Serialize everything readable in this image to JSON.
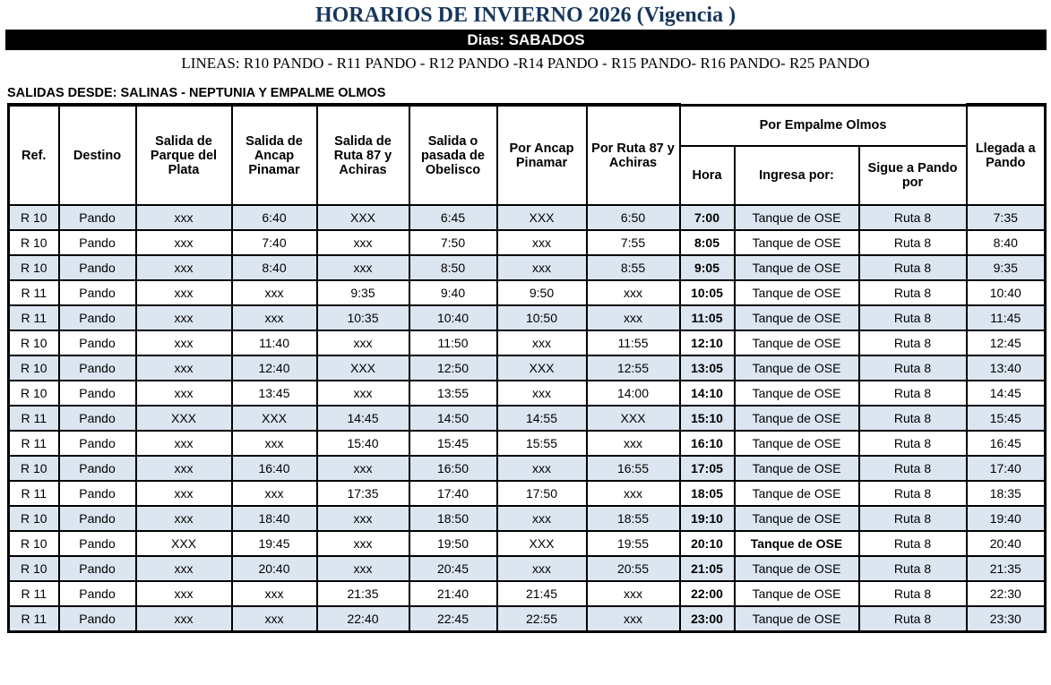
{
  "page": {
    "title": "HORARIOS DE INVIERNO 2026 (Vigencia )",
    "day_banner": "Dias: SABADOS",
    "lines": "LINEAS: R10 PANDO - R11 PANDO - R12 PANDO -R14 PANDO - R15 PANDO- R16 PANDO- R25 PANDO",
    "departures_from": "SALIDAS DESDE: SALINAS - NEPTUNIA Y EMPALME OLMOS"
  },
  "colors": {
    "title_navy": "#17365d",
    "banner_bg": "#000000",
    "banner_text": "#ffffff",
    "row_stripe": "#dce6f1",
    "grid_border": "#000000"
  },
  "table": {
    "headers": {
      "ref": "Ref.",
      "destino": "Destino",
      "parque": "Salida de Parque del Plata",
      "ancap": "Salida de Ancap Pinamar",
      "ruta87": "Salida de Ruta 87 y Achiras",
      "obelisco": "Salida o pasada de Obelisco",
      "por_ancap": "Por Ancap Pinamar",
      "por_ruta87": "Por Ruta 87 y Achiras",
      "por_empalme_group": "Por Empalme Olmos",
      "hora": "Hora",
      "ingresa": "Ingresa por:",
      "sigue": "Sigue a Pando por",
      "llegada": "Llegada a Pando"
    },
    "rows": [
      {
        "ref": "R 10",
        "destino": "Pando",
        "parque": "xxx",
        "ancap": "6:40",
        "ruta87": "XXX",
        "obelisco": "6:45",
        "por_ancap": "XXX",
        "por_ruta87": "6:50",
        "hora": "7:00",
        "ingresa": "Tanque de OSE",
        "sigue": "Ruta 8",
        "llegada": "7:35"
      },
      {
        "ref": "R 10",
        "destino": "Pando",
        "parque": "xxx",
        "ancap": "7:40",
        "ruta87": "xxx",
        "obelisco": "7:50",
        "por_ancap": "xxx",
        "por_ruta87": "7:55",
        "hora": "8:05",
        "ingresa": "Tanque de OSE",
        "sigue": "Ruta 8",
        "llegada": "8:40"
      },
      {
        "ref": "R 10",
        "destino": "Pando",
        "parque": "xxx",
        "ancap": "8:40",
        "ruta87": "xxx",
        "obelisco": "8:50",
        "por_ancap": "xxx",
        "por_ruta87": "8:55",
        "hora": "9:05",
        "ingresa": "Tanque de OSE",
        "sigue": "Ruta 8",
        "llegada": "9:35"
      },
      {
        "ref": "R 11",
        "destino": "Pando",
        "parque": "xxx",
        "ancap": "xxx",
        "ruta87": "9:35",
        "obelisco": "9:40",
        "por_ancap": "9:50",
        "por_ruta87": "xxx",
        "hora": "10:05",
        "ingresa": "Tanque de OSE",
        "sigue": "Ruta 8",
        "llegada": "10:40"
      },
      {
        "ref": "R 11",
        "destino": "Pando",
        "parque": "xxx",
        "ancap": "xxx",
        "ruta87": "10:35",
        "obelisco": "10:40",
        "por_ancap": "10:50",
        "por_ruta87": "xxx",
        "hora": "11:05",
        "ingresa": "Tanque de OSE",
        "sigue": "Ruta 8",
        "llegada": "11:45"
      },
      {
        "ref": "R 10",
        "destino": "Pando",
        "parque": "xxx",
        "ancap": "11:40",
        "ruta87": "xxx",
        "obelisco": "11:50",
        "por_ancap": "xxx",
        "por_ruta87": "11:55",
        "hora": "12:10",
        "ingresa": "Tanque de OSE",
        "sigue": "Ruta 8",
        "llegada": "12:45"
      },
      {
        "ref": "R 10",
        "destino": "Pando",
        "parque": "xxx",
        "ancap": "12:40",
        "ruta87": "XXX",
        "obelisco": "12:50",
        "por_ancap": "XXX",
        "por_ruta87": "12:55",
        "hora": "13:05",
        "ingresa": "Tanque de OSE",
        "sigue": "Ruta 8",
        "llegada": "13:40"
      },
      {
        "ref": "R 10",
        "destino": "Pando",
        "parque": "xxx",
        "ancap": "13:45",
        "ruta87": "xxx",
        "obelisco": "13:55",
        "por_ancap": "xxx",
        "por_ruta87": "14:00",
        "hora": "14:10",
        "ingresa": "Tanque de OSE",
        "sigue": "Ruta 8",
        "llegada": "14:45"
      },
      {
        "ref": "R 11",
        "destino": "Pando",
        "parque": "XXX",
        "ancap": "XXX",
        "ruta87": "14:45",
        "obelisco": "14:50",
        "por_ancap": "14:55",
        "por_ruta87": "XXX",
        "hora": "15:10",
        "ingresa": "Tanque de OSE",
        "sigue": "Ruta 8",
        "llegada": "15:45"
      },
      {
        "ref": "R 11",
        "destino": "Pando",
        "parque": "xxx",
        "ancap": "xxx",
        "ruta87": "15:40",
        "obelisco": "15:45",
        "por_ancap": "15:55",
        "por_ruta87": "xxx",
        "hora": "16:10",
        "ingresa": "Tanque de OSE",
        "sigue": "Ruta 8",
        "llegada": "16:45"
      },
      {
        "ref": "R 10",
        "destino": "Pando",
        "parque": "xxx",
        "ancap": "16:40",
        "ruta87": "xxx",
        "obelisco": "16:50",
        "por_ancap": "xxx",
        "por_ruta87": "16:55",
        "hora": "17:05",
        "ingresa": "Tanque de OSE",
        "sigue": "Ruta 8",
        "llegada": "17:40"
      },
      {
        "ref": "R 11",
        "destino": "Pando",
        "parque": "xxx",
        "ancap": "xxx",
        "ruta87": "17:35",
        "obelisco": "17:40",
        "por_ancap": "17:50",
        "por_ruta87": "xxx",
        "hora": "18:05",
        "ingresa": "Tanque de OSE",
        "sigue": "Ruta 8",
        "llegada": "18:35"
      },
      {
        "ref": "R 10",
        "destino": "Pando",
        "parque": "xxx",
        "ancap": "18:40",
        "ruta87": "xxx",
        "obelisco": "18:50",
        "por_ancap": "xxx",
        "por_ruta87": "18:55",
        "hora": "19:10",
        "ingresa": "Tanque de OSE",
        "sigue": "Ruta 8",
        "llegada": "19:40"
      },
      {
        "ref": "R 10",
        "destino": "Pando",
        "parque": "XXX",
        "ancap": "19:45",
        "ruta87": "xxx",
        "obelisco": "19:50",
        "por_ancap": "XXX",
        "por_ruta87": "19:55",
        "hora": "20:10",
        "ingresa": "Tanque de OSE",
        "sigue": "Ruta 8",
        "llegada": "20:40",
        "ingresa_bold": true
      },
      {
        "ref": "R 10",
        "destino": "Pando",
        "parque": "xxx",
        "ancap": "20:40",
        "ruta87": "xxx",
        "obelisco": "20:45",
        "por_ancap": "xxx",
        "por_ruta87": "20:55",
        "hora": "21:05",
        "ingresa": "Tanque de OSE",
        "sigue": "Ruta 8",
        "llegada": "21:35"
      },
      {
        "ref": "R 11",
        "destino": "Pando",
        "parque": "xxx",
        "ancap": "xxx",
        "ruta87": "21:35",
        "obelisco": "21:40",
        "por_ancap": "21:45",
        "por_ruta87": "xxx",
        "hora": "22:00",
        "ingresa": "Tanque de OSE",
        "sigue": "Ruta 8",
        "llegada": "22:30"
      },
      {
        "ref": "R 11",
        "destino": "Pando",
        "parque": "xxx",
        "ancap": "xxx",
        "ruta87": "22:40",
        "obelisco": "22:45",
        "por_ancap": "22:55",
        "por_ruta87": "xxx",
        "hora": "23:00",
        "ingresa": "Tanque de OSE",
        "sigue": "Ruta 8",
        "llegada": "23:30"
      }
    ]
  }
}
